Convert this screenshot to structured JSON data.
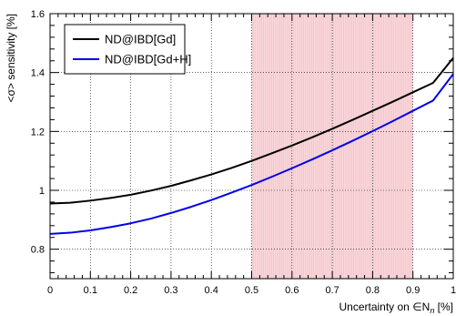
{
  "chart_data": {
    "type": "line",
    "xlabel": "Uncertainty on ∈N",
    "xlabel_subscript": "n",
    "xlabel_unit": " [%]",
    "ylabel": "<σ> sensitivity [%]",
    "xlim": [
      0,
      1
    ],
    "ylim": [
      0.7,
      1.6
    ],
    "x_ticks": [
      0,
      0.1,
      0.2,
      0.3,
      0.4,
      0.5,
      0.6,
      0.7,
      0.8,
      0.9,
      1
    ],
    "x_tick_labels": [
      "0",
      "0.1",
      "0.2",
      "0.3",
      "0.4",
      "0.5",
      "0.6",
      "0.7",
      "0.8",
      "0.9",
      "1"
    ],
    "y_ticks": [
      0.8,
      1.0,
      1.2,
      1.4,
      1.6
    ],
    "y_tick_labels": [
      "0.8",
      "1",
      "1.2",
      "1.4",
      "1.6"
    ],
    "grid": true,
    "legend_position": "top-left",
    "shaded_band": {
      "x_range": [
        0.5,
        0.9
      ],
      "color": "#f4b6bd"
    },
    "series": [
      {
        "name": "ND@IBD[Gd]",
        "color": "#000000",
        "x": [
          0,
          0.05,
          0.1,
          0.15,
          0.2,
          0.25,
          0.3,
          0.35,
          0.4,
          0.45,
          0.5,
          0.55,
          0.6,
          0.65,
          0.7,
          0.75,
          0.8,
          0.85,
          0.9,
          0.95,
          1
        ],
        "y": [
          0.955,
          0.958,
          0.965,
          0.974,
          0.985,
          0.999,
          1.015,
          1.034,
          1.054,
          1.076,
          1.1,
          1.126,
          1.152,
          1.18,
          1.209,
          1.239,
          1.27,
          1.301,
          1.333,
          1.365,
          1.45
        ]
      },
      {
        "name": "ND@IBD[Gd+H]",
        "color": "#0000ee",
        "x": [
          0,
          0.05,
          0.1,
          0.15,
          0.2,
          0.25,
          0.3,
          0.35,
          0.4,
          0.45,
          0.5,
          0.55,
          0.6,
          0.65,
          0.7,
          0.75,
          0.8,
          0.85,
          0.9,
          0.95,
          1
        ],
        "y": [
          0.852,
          0.856,
          0.864,
          0.875,
          0.888,
          0.904,
          0.923,
          0.944,
          0.967,
          0.992,
          1.018,
          1.046,
          1.075,
          1.105,
          1.136,
          1.168,
          1.201,
          1.235,
          1.27,
          1.305,
          1.395
        ]
      }
    ]
  }
}
